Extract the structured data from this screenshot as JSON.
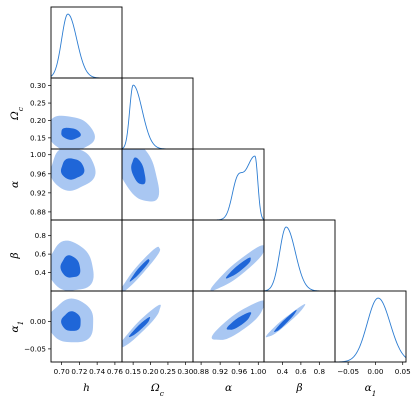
{
  "chart_data": {
    "type": "triangle-corner-plot",
    "parameters": [
      {
        "key": "h",
        "label": "h"
      },
      {
        "key": "omega_c",
        "label": "Ωc"
      },
      {
        "key": "alpha",
        "label": "α"
      },
      {
        "key": "beta",
        "label": "β"
      },
      {
        "key": "alpha1",
        "label": "α1"
      }
    ],
    "axis_labels": {
      "x": [
        "h",
        "Ωc",
        "α",
        "β",
        "α1"
      ],
      "y": [
        "Ωc",
        "α",
        "β",
        "α1"
      ]
    },
    "x_ticks": [
      {
        "values": [
          0.7,
          0.72,
          0.74,
          0.76
        ],
        "labels": [
          "0.70",
          "0.72",
          "0.74",
          "0.76"
        ]
      },
      {
        "values": [
          0.15,
          0.2,
          0.25,
          0.3
        ],
        "labels": [
          "0.15",
          "0.20",
          "0.25",
          "0.30"
        ]
      },
      {
        "values": [
          0.88,
          0.92,
          0.96,
          1.0
        ],
        "labels": [
          "0.88",
          "0.92",
          "0.96",
          "1.00"
        ]
      },
      {
        "values": [
          0.4,
          0.6,
          0.8
        ],
        "labels": [
          "0.4",
          "0.6",
          "0.8"
        ]
      },
      {
        "values": [
          -0.05,
          0.0,
          0.05
        ],
        "labels": [
          "−0.05",
          "0.00",
          "0.05"
        ]
      }
    ],
    "y_ticks": [
      {
        "values": [
          0.15,
          0.2,
          0.25,
          0.3
        ],
        "labels": [
          "0.15",
          "0.20",
          "0.25",
          "0.30"
        ]
      },
      {
        "values": [
          0.88,
          0.92,
          0.96,
          1.0
        ],
        "labels": [
          "0.88",
          "0.92",
          "0.96",
          "1.00"
        ]
      },
      {
        "values": [
          0.4,
          0.6,
          0.8
        ],
        "labels": [
          "0.4",
          "0.6",
          "0.8"
        ]
      },
      {
        "values": [
          0.0,
          -0.05
        ],
        "labels": [
          "0.00",
          "−0.05"
        ]
      }
    ],
    "ranges": [
      [
        0.688,
        0.768
      ],
      [
        0.118,
        0.322
      ],
      [
        0.863,
        1.012
      ],
      [
        0.2,
        0.97
      ],
      [
        -0.074,
        0.056
      ]
    ],
    "marginals": [
      {
        "parameter": "h",
        "peak": 0.707,
        "width_left": 0.007,
        "width_right": 0.01
      },
      {
        "parameter": "omega_c",
        "peak": 0.15,
        "width_left": 0.01,
        "width_right": 0.026
      },
      {
        "parameter": "alpha",
        "peak": 0.993,
        "width_left": 0.022,
        "width_right": 0.006,
        "secondary_peak": 0.955
      },
      {
        "parameter": "beta",
        "peak": 0.44,
        "width_left": 0.07,
        "width_right": 0.1
      },
      {
        "parameter": "alpha1",
        "peak": 0.005,
        "width_left": 0.02,
        "width_right": 0.022
      }
    ],
    "joint_contours": [
      {
        "x": "h",
        "y": "omega_c",
        "center": [
          0.71,
          0.162
        ],
        "inner_extent": [
          0.011,
          0.017
        ],
        "outer_extent": [
          0.026,
          0.052
        ],
        "correlation": -0.15
      },
      {
        "x": "h",
        "y": "alpha",
        "center": [
          0.712,
          0.97
        ],
        "inner_extent": [
          0.013,
          0.022
        ],
        "outer_extent": [
          0.025,
          0.045
        ],
        "correlation": 0.0
      },
      {
        "x": "h",
        "y": "beta",
        "center": [
          0.71,
          0.46
        ],
        "inner_extent": [
          0.011,
          0.12
        ],
        "outer_extent": [
          0.026,
          0.27
        ],
        "correlation": -0.1
      },
      {
        "x": "h",
        "y": "alpha1",
        "center": [
          0.711,
          0.0
        ],
        "inner_extent": [
          0.011,
          0.018
        ],
        "outer_extent": [
          0.026,
          0.04
        ],
        "correlation": 0.0
      },
      {
        "x": "omega_c",
        "y": "alpha",
        "center": [
          0.165,
          0.965
        ],
        "inner_extent": [
          0.02,
          0.028
        ],
        "outer_extent": [
          0.058,
          0.065
        ],
        "correlation": -0.45
      },
      {
        "x": "omega_c",
        "y": "beta",
        "center": [
          0.17,
          0.43
        ],
        "inner_extent": [
          0.028,
          0.12
        ],
        "outer_extent": [
          0.06,
          0.26
        ],
        "correlation": 0.96
      },
      {
        "x": "omega_c",
        "y": "alpha1",
        "center": [
          0.17,
          -0.01
        ],
        "inner_extent": [
          0.03,
          0.018
        ],
        "outer_extent": [
          0.062,
          0.04
        ],
        "correlation": 0.95
      },
      {
        "x": "alpha",
        "y": "beta",
        "center": [
          0.96,
          0.45
        ],
        "inner_extent": [
          0.026,
          0.11
        ],
        "outer_extent": [
          0.056,
          0.24
        ],
        "correlation": 0.93
      },
      {
        "x": "alpha",
        "y": "alpha1",
        "center": [
          0.96,
          0.0
        ],
        "inner_extent": [
          0.025,
          0.016
        ],
        "outer_extent": [
          0.055,
          0.036
        ],
        "correlation": 0.85
      },
      {
        "x": "beta",
        "y": "alpha1",
        "center": [
          0.43,
          0.0
        ],
        "inner_extent": [
          0.12,
          0.02
        ],
        "outer_extent": [
          0.21,
          0.03
        ],
        "correlation": 0.97
      }
    ],
    "grid": false,
    "legend": "none",
    "colors": {
      "contour_inner": "#1f66d8",
      "contour_outer": "#a9c7f2",
      "marginal_line": "#2d7dd2",
      "frame": "#000000",
      "text": "#000000",
      "background": "#ffffff"
    }
  }
}
